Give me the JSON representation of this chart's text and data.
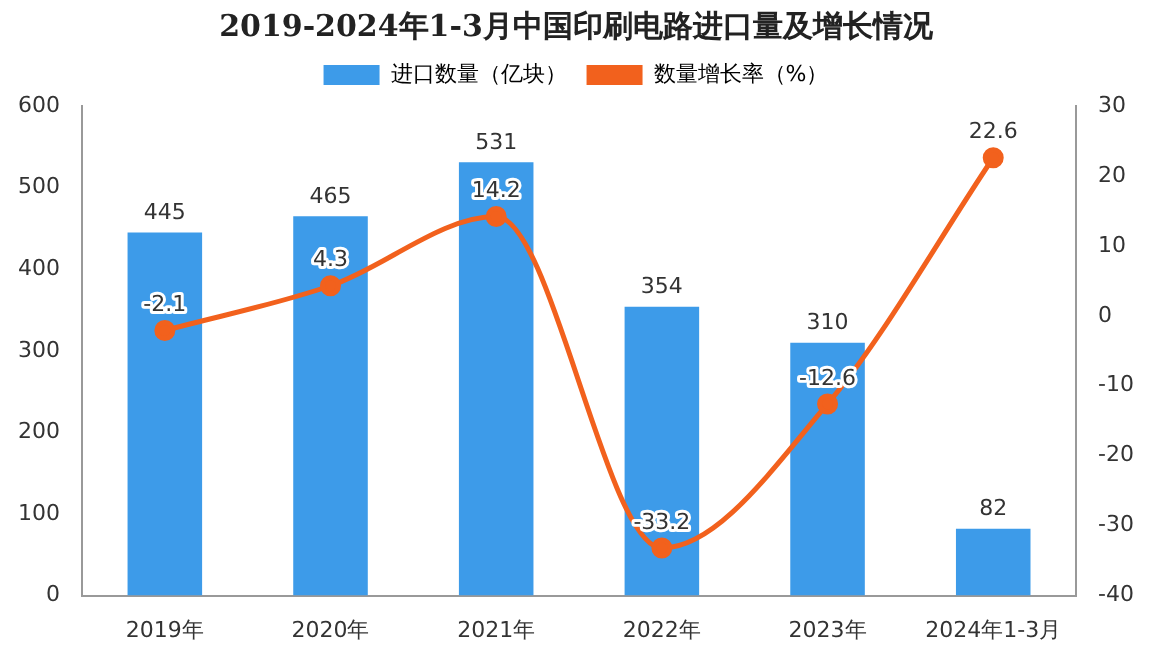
{
  "chart_data": {
    "type": "bar",
    "title": "2019-2024年1-3月中国印刷电路进口量及增长情况",
    "categories": [
      "2019年",
      "2020年",
      "2021年",
      "2022年",
      "2023年",
      "2024年1-3月"
    ],
    "series": [
      {
        "name": "进口数量（亿块）",
        "color": "#3d9be9",
        "values": [
          445,
          465,
          531,
          354,
          310,
          82
        ]
      },
      {
        "name": "数量增长率（%）",
        "type": "line",
        "axis": "y2",
        "color": "#f2611d",
        "values": [
          -2.1,
          4.3,
          14.2,
          -33.2,
          -12.6,
          22.6
        ]
      }
    ],
    "ylim": [
      0,
      600
    ],
    "yticks": [
      0,
      100,
      200,
      300,
      400,
      500,
      600
    ],
    "y2lim": [
      -40,
      30
    ],
    "y2ticks": [
      -40,
      -30,
      -20,
      -10,
      0,
      10,
      20,
      30
    ],
    "legend": "top",
    "marker": "circle",
    "grid": false,
    "data_labels": true
  }
}
